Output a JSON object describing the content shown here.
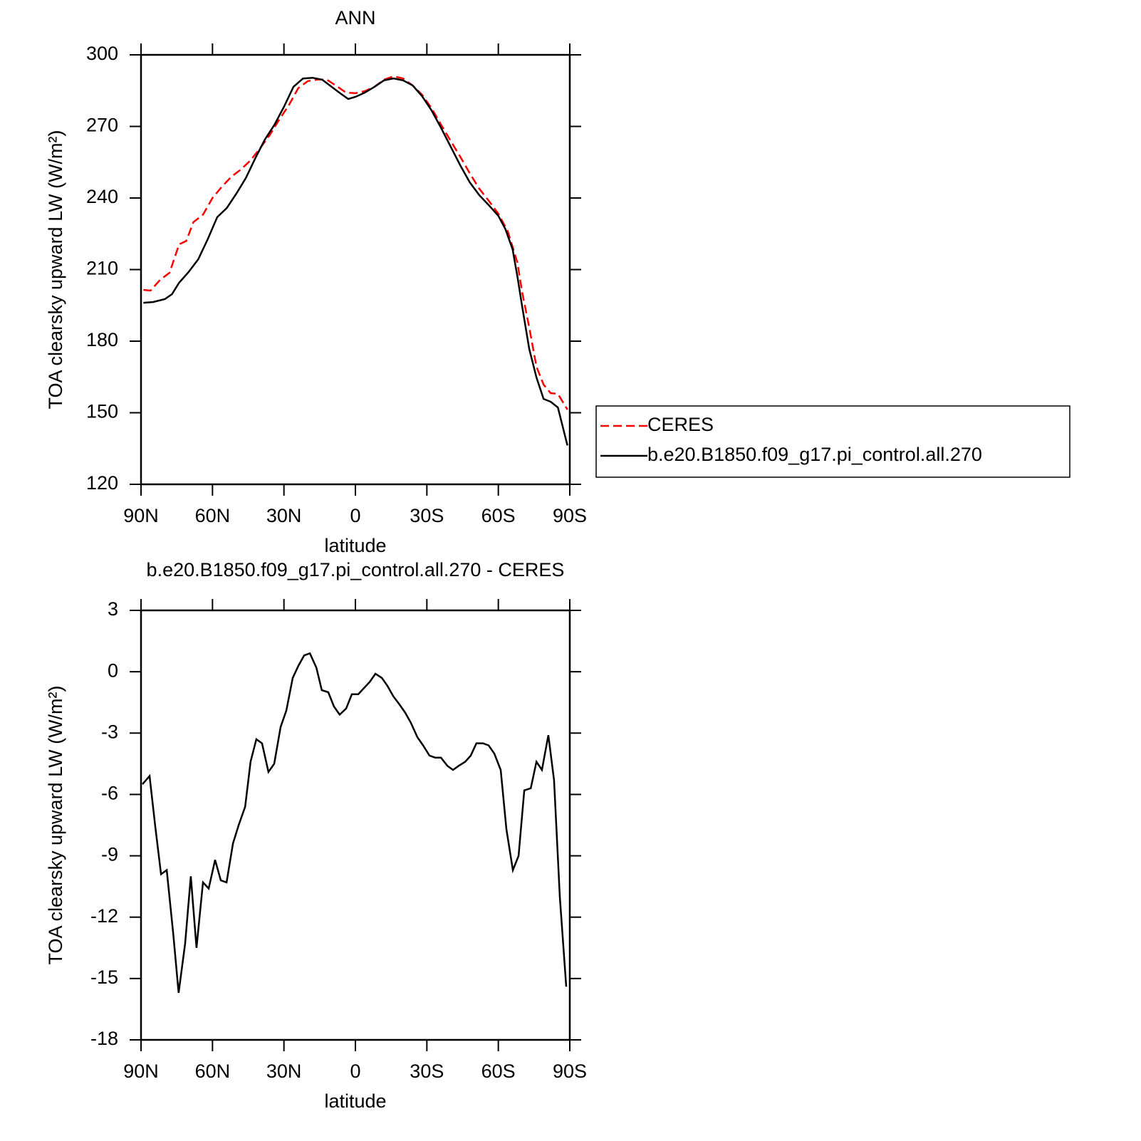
{
  "chart_data": [
    {
      "type": "line",
      "title": "ANN",
      "x_label": "latitude",
      "y_label": "TOA clearsky upward LW (W/m²)",
      "xlim": [
        90,
        -90
      ],
      "xticks": [
        {
          "value": 90,
          "label": "90N"
        },
        {
          "value": 60,
          "label": "60N"
        },
        {
          "value": 30,
          "label": "30N"
        },
        0,
        {
          "value": -30,
          "label": "30S"
        },
        {
          "value": -60,
          "label": "60S"
        },
        {
          "value": -90,
          "label": "90S"
        }
      ],
      "ylim": [
        120,
        300
      ],
      "yticks": [
        120,
        150,
        180,
        210,
        240,
        270,
        300
      ],
      "legend": "right",
      "series": [
        {
          "name": "CERES",
          "color": "#ff0000",
          "linestyle": "dashed",
          "x": [
            89,
            86,
            82,
            78,
            74,
            71,
            68,
            64,
            60,
            56,
            52,
            48,
            44,
            40,
            36,
            32,
            28,
            24,
            20,
            16,
            12,
            8,
            4,
            0,
            -4,
            -8,
            -12,
            -16,
            -20,
            -24,
            -28,
            -32,
            -36,
            -40,
            -44,
            -48,
            -52,
            -56,
            -60,
            -64,
            -68,
            -70,
            -73,
            -76,
            -79,
            -82,
            -85,
            -89
          ],
          "values": [
            201.5,
            201.2,
            205.7,
            208.7,
            220.6,
            222,
            229.9,
            233,
            240,
            244.8,
            249,
            252,
            255.8,
            260.9,
            266.3,
            272.8,
            278.8,
            286,
            289,
            289.6,
            289.6,
            287,
            284.2,
            283.9,
            284.8,
            286.6,
            289.6,
            291,
            290.1,
            287.2,
            283.3,
            277.6,
            270.7,
            263.9,
            257.3,
            250.4,
            243.9,
            238.8,
            233.4,
            226,
            213,
            200.6,
            185.7,
            169.3,
            161.8,
            158.2,
            157.9,
            151.3
          ]
        },
        {
          "name": "b.e20.B1850.f09_g17.pi_control.all.270",
          "color": "#000000",
          "linestyle": "solid",
          "x": [
            89,
            85,
            80,
            77,
            74,
            70,
            66,
            62,
            58,
            54,
            50,
            46,
            42,
            38,
            34,
            30,
            26,
            22,
            18,
            14,
            10,
            6,
            3,
            0,
            -4,
            -8,
            -12,
            -16,
            -20,
            -24,
            -28,
            -32,
            -36,
            -40,
            -44,
            -48,
            -52,
            -56,
            -60,
            -63,
            -66,
            -68,
            -70,
            -73,
            -76,
            -79,
            -82,
            -85,
            -89
          ],
          "values": [
            196.1,
            196.4,
            197.6,
            199.7,
            204.5,
            209,
            214.3,
            222.7,
            232,
            235.8,
            241.8,
            248.4,
            256.7,
            264.5,
            270.7,
            278.2,
            286.6,
            290.1,
            290.4,
            289.6,
            286.6,
            283.6,
            281.5,
            282.4,
            284.2,
            286.6,
            289.3,
            290.1,
            289.3,
            287.2,
            282.7,
            276.7,
            269.3,
            261.5,
            253.7,
            246.6,
            241.2,
            237,
            232.5,
            226.9,
            218.5,
            207.2,
            194.6,
            176.7,
            164.8,
            155.8,
            154.6,
            152.2,
            136.3
          ]
        }
      ]
    },
    {
      "type": "line",
      "title": "b.e20.B1850.f09_g17.pi_control.all.270 - CERES",
      "x_label": "latitude",
      "y_label": "TOA clearsky upward LW (W/m²)",
      "xlim": [
        90,
        -90
      ],
      "xticks": [
        {
          "value": 90,
          "label": "90N"
        },
        {
          "value": 60,
          "label": "60N"
        },
        {
          "value": 30,
          "label": "30N"
        },
        0,
        {
          "value": -30,
          "label": "30S"
        },
        {
          "value": -60,
          "label": "60S"
        },
        {
          "value": -90,
          "label": "90S"
        }
      ],
      "ylim": [
        -18,
        3
      ],
      "yticks": [
        -18,
        -15,
        -12,
        -9,
        -6,
        -3,
        0,
        3
      ],
      "series": [
        {
          "color": "#000000",
          "linestyle": "solid",
          "x": [
            89.4,
            86.4,
            84.0,
            81.6,
            79.2,
            76.5,
            74.2,
            71.5,
            69.1,
            66.7,
            64.0,
            61.6,
            58.9,
            56.5,
            54.1,
            51.4,
            49.0,
            46.3,
            44.0,
            41.6,
            39.2,
            36.5,
            34.1,
            31.4,
            29.0,
            26.3,
            23.9,
            21.5,
            19.1,
            16.4,
            14.1,
            11.4,
            9.0,
            6.6,
            3.9,
            1.5,
            -1.2,
            -3.6,
            -6.0,
            -8.4,
            -11.1,
            -13.5,
            -15.9,
            -18.5,
            -20.9,
            -23.3,
            -26.0,
            -28.4,
            -31.1,
            -33.5,
            -35.9,
            -38.6,
            -41.0,
            -43.4,
            -46.1,
            -48.4,
            -50.8,
            -53.5,
            -55.9,
            -58.3,
            -61.0,
            -63.4,
            -66.1,
            -68.5,
            -70.9,
            -73.6,
            -76.0,
            -78.3,
            -81.0,
            -83.4,
            -85.8,
            -88.5
          ],
          "values": [
            -5.5,
            -5.1,
            -7.6,
            -9.9,
            -9.7,
            -12.8,
            -15.7,
            -13.3,
            -10.0,
            -13.5,
            -10.3,
            -10.6,
            -9.2,
            -10.2,
            -10.3,
            -8.4,
            -7.5,
            -6.6,
            -4.4,
            -3.3,
            -3.5,
            -4.9,
            -4.5,
            -2.7,
            -1.9,
            -0.3,
            0.3,
            0.8,
            0.9,
            0.2,
            -0.9,
            -1.0,
            -1.7,
            -2.1,
            -1.8,
            -1.1,
            -1.1,
            -0.8,
            -0.5,
            -0.1,
            -0.3,
            -0.7,
            -1.2,
            -1.6,
            -2.0,
            -2.5,
            -3.2,
            -3.6,
            -4.1,
            -4.2,
            -4.2,
            -4.6,
            -4.8,
            -4.6,
            -4.4,
            -4.1,
            -3.5,
            -3.5,
            -3.6,
            -4.0,
            -4.8,
            -7.7,
            -9.7,
            -9.0,
            -5.8,
            -5.7,
            -4.4,
            -4.8,
            -3.1,
            -5.3,
            -11.0,
            -15.4
          ]
        }
      ]
    }
  ]
}
